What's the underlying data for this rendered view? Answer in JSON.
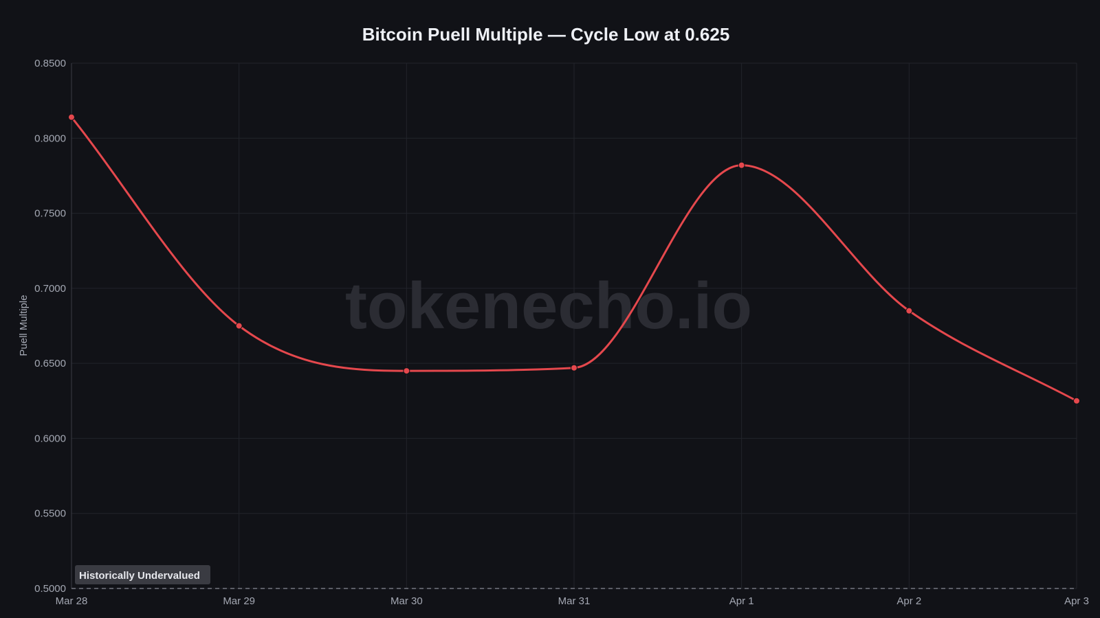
{
  "chart_data": {
    "type": "line",
    "title": "Bitcoin Puell Multiple — Cycle Low at 0.625",
    "xlabel": "",
    "ylabel": "Puell Multiple",
    "categories": [
      "Mar 28",
      "Mar 29",
      "Mar 30",
      "Mar 31",
      "Apr 1",
      "Apr 2",
      "Apr 3"
    ],
    "series": [
      {
        "values": [
          0.814,
          0.675,
          0.645,
          0.647,
          0.782,
          0.685,
          0.625
        ]
      }
    ],
    "ylim": [
      0.5,
      0.85
    ],
    "yticks": [
      "0.8500",
      "0.8000",
      "0.7500",
      "0.7000",
      "0.6500",
      "0.6000",
      "0.5500",
      "0.5000"
    ],
    "grid": true,
    "legend": "none",
    "colors": {
      "background": "#111217",
      "line": "#e5484d",
      "grid": "#22242b",
      "threshold": "#8a8d96"
    },
    "threshold": {
      "value": 0.5,
      "label": "Historically Undervalued"
    },
    "watermark": "tokenecho.io"
  }
}
